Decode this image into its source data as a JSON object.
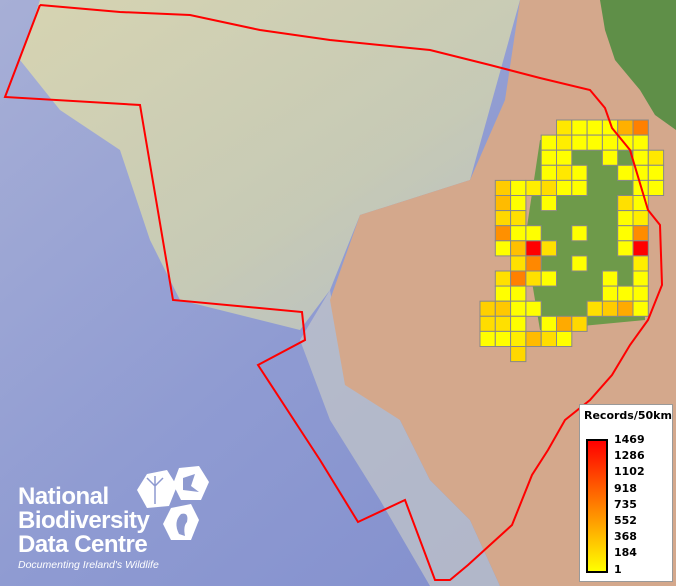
{
  "map": {
    "legend": {
      "title": "Records/50km",
      "values": [
        "1469",
        "1286",
        "1102",
        "918",
        "735",
        "552",
        "368",
        "184",
        "1"
      ],
      "colors": {
        "max": "#ff0000",
        "mid": "#ff8000",
        "min": "#ffff00"
      }
    },
    "boundary_color": "#ff0000",
    "grid_border_color": "#888888"
  },
  "logo": {
    "line1": "National",
    "line2": "Biodiversity",
    "line3": "Data Centre",
    "tagline": "Documenting Ireland's Wildlife"
  }
}
